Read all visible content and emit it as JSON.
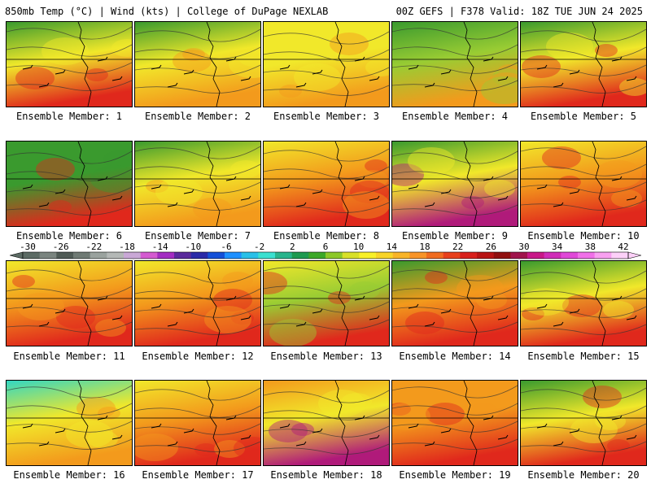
{
  "header": {
    "left": "850mb Temp (°C) | Wind (kts) | College of DuPage NEXLAB",
    "right": "00Z GEFS | F378 Valid: 18Z TUE JUN 24 2025"
  },
  "caption_prefix": "Ensemble Member: ",
  "members": [
    {
      "number": "1",
      "top": "green",
      "mid": "yellow",
      "bottom": "red"
    },
    {
      "number": "2",
      "top": "green",
      "mid": "yellow",
      "bottom": "orange"
    },
    {
      "number": "3",
      "top": "yellow",
      "mid": "yellow",
      "bottom": "orange"
    },
    {
      "number": "4",
      "top": "green",
      "mid": "lightgreen",
      "bottom": "orange"
    },
    {
      "number": "5",
      "top": "green",
      "mid": "yellow",
      "bottom": "red"
    },
    {
      "number": "6",
      "top": "green",
      "mid": "green",
      "bottom": "red"
    },
    {
      "number": "7",
      "top": "green",
      "mid": "yellow",
      "bottom": "orange"
    },
    {
      "number": "8",
      "top": "yellow",
      "mid": "orange",
      "bottom": "red"
    },
    {
      "number": "9",
      "top": "green",
      "mid": "yellow",
      "bottom": "magenta"
    },
    {
      "number": "10",
      "top": "yellow",
      "mid": "orange",
      "bottom": "red"
    },
    {
      "number": "11",
      "top": "yellow",
      "mid": "orange",
      "bottom": "red"
    },
    {
      "number": "12",
      "top": "yellow",
      "mid": "orange",
      "bottom": "red"
    },
    {
      "number": "13",
      "top": "yellow",
      "mid": "lightgreen",
      "bottom": "red"
    },
    {
      "number": "14",
      "top": "green",
      "mid": "orange",
      "bottom": "red"
    },
    {
      "number": "15",
      "top": "green",
      "mid": "yellow",
      "bottom": "red"
    },
    {
      "number": "16",
      "top": "teal",
      "mid": "yellow",
      "bottom": "orange"
    },
    {
      "number": "17",
      "top": "yellow",
      "mid": "orange",
      "bottom": "red"
    },
    {
      "number": "18",
      "top": "orange",
      "mid": "yellow",
      "bottom": "magenta"
    },
    {
      "number": "19",
      "top": "orange",
      "mid": "orange",
      "bottom": "red"
    },
    {
      "number": "20",
      "top": "green",
      "mid": "yellow",
      "bottom": "red"
    }
  ],
  "palette": {
    "teal": "#33d6c2",
    "green": "#3a9a2e",
    "lightgreen": "#99cc33",
    "yellow": "#f1e82a",
    "orange": "#f39a1c",
    "red": "#e0281c",
    "magenta": "#b01a7a"
  },
  "colorbar": {
    "labels": [
      "-30",
      "-26",
      "-22",
      "-18",
      "-14",
      "-10",
      "-6",
      "-2",
      "2",
      "6",
      "10",
      "14",
      "18",
      "22",
      "26",
      "30",
      "34",
      "38",
      "42"
    ],
    "colors": [
      "#5c6b64",
      "#7a847f",
      "#4f5a55",
      "#6f7a74",
      "#9aa29e",
      "#b4b8b6",
      "#c9a8d6",
      "#d45ad0",
      "#a32cc2",
      "#5a2a9c",
      "#2a2aa8",
      "#1450d8",
      "#1e90ff",
      "#28c0e8",
      "#3ae0d0",
      "#28b48c",
      "#1e9a50",
      "#3ca828",
      "#8cc828",
      "#d8e028",
      "#f8f028",
      "#f8d428",
      "#f8b428",
      "#f89428",
      "#f06c20",
      "#e8401c",
      "#d8201c",
      "#b81414",
      "#901010",
      "#a0144c",
      "#c81888",
      "#d02cb8",
      "#e048d8",
      "#f070e8",
      "#f8a0f0",
      "#fcd0f8"
    ]
  }
}
